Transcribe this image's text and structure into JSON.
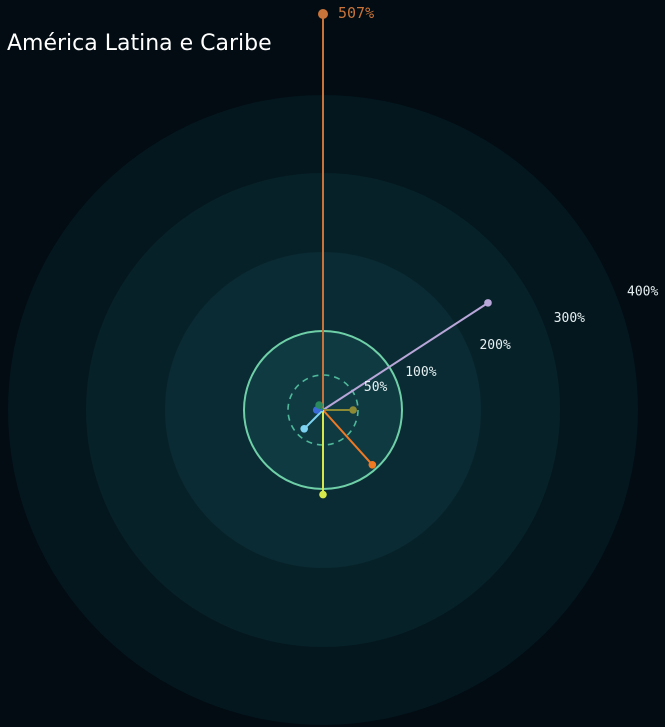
{
  "chart_data": {
    "type": "radial",
    "title": "América Latina e Caribe",
    "rings": [
      {
        "value": 50,
        "label": "50%"
      },
      {
        "value": 100,
        "label": "100%"
      },
      {
        "value": 200,
        "label": "200%"
      },
      {
        "value": 300,
        "label": "300%"
      },
      {
        "value": 400,
        "label": "400%"
      }
    ],
    "max_label": {
      "value": 507,
      "label": "507%"
    },
    "series": [
      {
        "value": 507,
        "angle_deg": 0,
        "color": "#c8733a"
      },
      {
        "value": 249,
        "angle_deg": 57,
        "color": "#b8a6d9"
      },
      {
        "value": 43,
        "angle_deg": 90,
        "color": "#8c8a34"
      },
      {
        "value": 94,
        "angle_deg": 138,
        "color": "#f07a24"
      },
      {
        "value": 107,
        "angle_deg": 180,
        "color": "#d6e84a"
      },
      {
        "value": 38,
        "angle_deg": 225,
        "color": "#7fd3f2"
      },
      {
        "value": 9,
        "angle_deg": 270,
        "color": "#3a6ad8"
      },
      {
        "value": 9,
        "angle_deg": 322,
        "color": "#2a8a5e"
      }
    ],
    "colors": {
      "background": "#020c12",
      "ring_fill_outer": "#04171e",
      "ring_fill_2": "#072129",
      "ring_fill_3": "#0a2b33",
      "ring_fill_inner": "#0f3a42",
      "ring_100_stroke": "#6fd0a8",
      "ring_50_stroke": "#4fb89a",
      "max_label_color": "#c8733a"
    }
  }
}
